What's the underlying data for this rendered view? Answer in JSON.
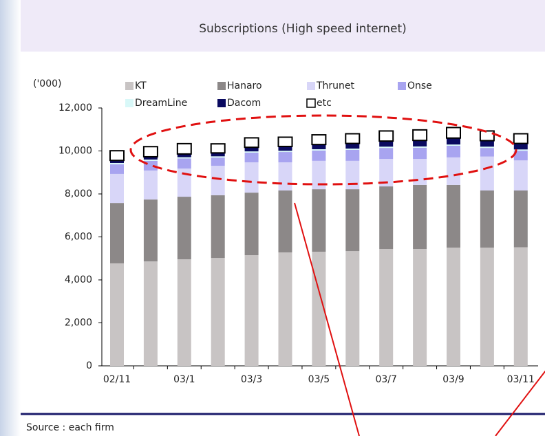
{
  "chart_data": {
    "type": "stacked_bar",
    "title": "Subscriptions (High speed internet)",
    "y_unit": "('000)",
    "source": "Source : each firm",
    "categories": [
      "02/11",
      null,
      "03/1",
      null,
      "03/3",
      null,
      "03/5",
      null,
      "03/7",
      null,
      "03/9",
      null,
      "03/11"
    ],
    "series": [
      {
        "name": "KT",
        "color": "#c8c4c4",
        "values": [
          4770,
          4860,
          4960,
          5020,
          5150,
          5280,
          5310,
          5340,
          5440,
          5440,
          5500,
          5500,
          5520
        ]
      },
      {
        "name": "Hanaro",
        "color": "#8c8888",
        "values": [
          2810,
          2880,
          2910,
          2920,
          2910,
          2880,
          2910,
          2880,
          2910,
          2980,
          2920,
          2660,
          2640
        ]
      },
      {
        "name": "Thrunet",
        "color": "#d8d6f8",
        "values": [
          1350,
          1350,
          1310,
          1370,
          1410,
          1310,
          1320,
          1320,
          1280,
          1210,
          1280,
          1580,
          1400
        ]
      },
      {
        "name": "Onse",
        "color": "#a8a4f0",
        "values": [
          450,
          450,
          470,
          380,
          450,
          480,
          480,
          510,
          510,
          520,
          540,
          400,
          450
        ]
      },
      {
        "name": "DreamLine",
        "color": "#d8f8f8",
        "values": [
          60,
          60,
          60,
          60,
          60,
          60,
          60,
          60,
          60,
          60,
          60,
          60,
          60
        ]
      },
      {
        "name": "Dacom",
        "color": "#0a0a60",
        "values": [
          120,
          130,
          150,
          160,
          190,
          200,
          220,
          240,
          260,
          280,
          300,
          280,
          280
        ]
      },
      {
        "name": "etc",
        "color": "#ffffff",
        "values": [
          450,
          470,
          480,
          420,
          440,
          430,
          450,
          450,
          470,
          490,
          490,
          450,
          450
        ]
      }
    ],
    "ylim": [
      0,
      12000
    ],
    "yticks": [
      0,
      {
        "value": 2000,
        "label": "2,000"
      },
      {
        "value": 4000,
        "label": "4,000"
      },
      {
        "value": 6000,
        "label": "6,000"
      },
      {
        "value": 8000,
        "label": "8,000"
      },
      {
        "value": 10000,
        "label": "10,000"
      },
      {
        "value": 12000,
        "label": "12,000"
      }
    ]
  }
}
